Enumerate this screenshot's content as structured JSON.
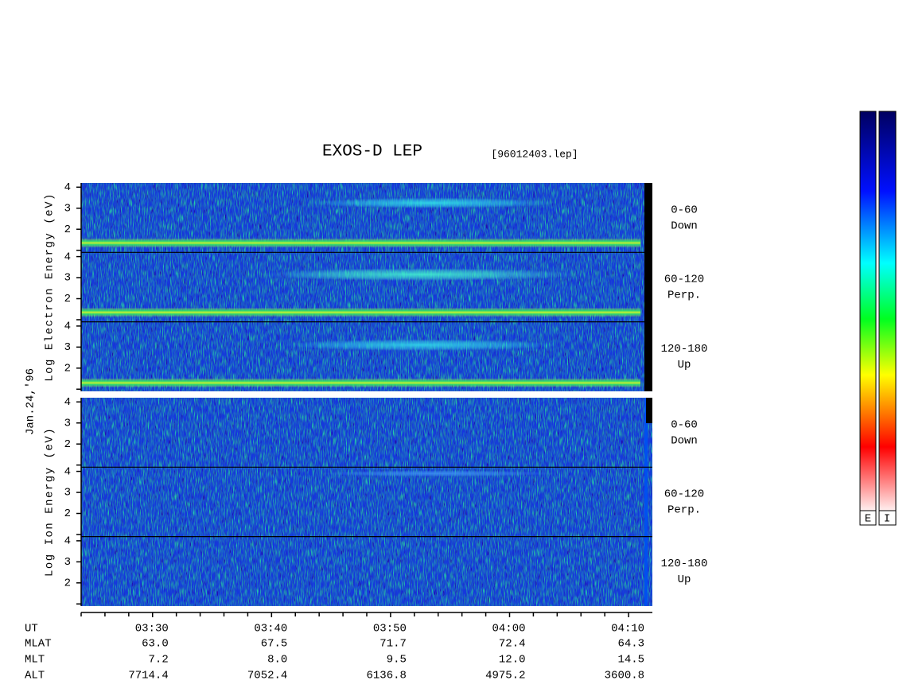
{
  "header": {
    "title": "EXOS-D LEP",
    "file": "[96012403.lep]"
  },
  "chart_data": {
    "type": "spectrogram",
    "xlim": [
      "03:24",
      "04:12"
    ],
    "xticks": [
      "03:30",
      "03:40",
      "03:50",
      "04:00",
      "04:10"
    ],
    "minor_xticks": [
      "03:24",
      "03:26",
      "03:28",
      "03:32",
      "03:34",
      "03:36",
      "03:38",
      "03:42",
      "03:44",
      "03:46",
      "03:48",
      "03:52",
      "03:54",
      "03:56",
      "03:58",
      "04:02",
      "04:04",
      "04:06",
      "04:08"
    ],
    "ylim": [
      0.9,
      4.2
    ],
    "yticks": [
      2,
      3,
      4
    ],
    "minor_yticks": [
      1
    ],
    "date": "Jan.24,'96",
    "groups": [
      {
        "label": "Log Electron Energy (eV)"
      },
      {
        "label": "Log Ion Energy (eV)"
      }
    ],
    "panels": [
      {
        "group": 0,
        "label": [
          "0-60",
          "Down"
        ]
      },
      {
        "group": 0,
        "label": [
          "60-120",
          "Perp."
        ]
      },
      {
        "group": 0,
        "label": [
          "120-180",
          "Up"
        ]
      },
      {
        "group": 1,
        "label": [
          "0-60",
          "Down"
        ]
      },
      {
        "group": 1,
        "label": [
          "60-120",
          "Perp."
        ]
      },
      {
        "group": 1,
        "label": [
          "120-180",
          "Up"
        ]
      }
    ],
    "bands": [
      {
        "panel": 0,
        "style": "band",
        "start": "03:24",
        "end": "04:11",
        "energy": 1.35,
        "width": 0.45,
        "color": "#c8f030"
      },
      {
        "panel": 0,
        "style": "cloud",
        "start": "03:43",
        "end": "04:04",
        "energy": 3.25,
        "width": 0.5,
        "color": "#30d8e8"
      },
      {
        "panel": 1,
        "style": "band",
        "start": "03:24",
        "end": "04:11",
        "energy": 1.35,
        "width": 0.45,
        "color": "#c8f030"
      },
      {
        "panel": 1,
        "style": "cloud",
        "start": "03:39",
        "end": "04:06",
        "energy": 3.15,
        "width": 0.6,
        "color": "#40e8d0"
      },
      {
        "panel": 2,
        "style": "band",
        "start": "03:24",
        "end": "04:11",
        "energy": 1.3,
        "width": 0.45,
        "color": "#c8f030"
      },
      {
        "panel": 2,
        "style": "cloud",
        "start": "03:41",
        "end": "04:04",
        "energy": 3.1,
        "width": 0.55,
        "color": "#30d0e8"
      },
      {
        "panel": 4,
        "style": "cloud",
        "start": "03:44",
        "end": "04:04",
        "energy": 3.9,
        "width": 0.3,
        "color": "#3a8cf0"
      }
    ]
  },
  "orbit_table": {
    "row_labels": [
      "UT",
      "MLAT",
      "MLT",
      "ALT"
    ],
    "rows": [
      [
        "63.0",
        "67.5",
        "71.7",
        "72.4",
        "64.3"
      ],
      [
        "7.2",
        "8.0",
        "9.5",
        "12.0",
        "14.5"
      ],
      [
        "7714.4",
        "7052.4",
        "6136.8",
        "4975.2",
        "3600.8"
      ]
    ]
  },
  "colorbars": {
    "labels": [
      "E",
      "I"
    ]
  }
}
